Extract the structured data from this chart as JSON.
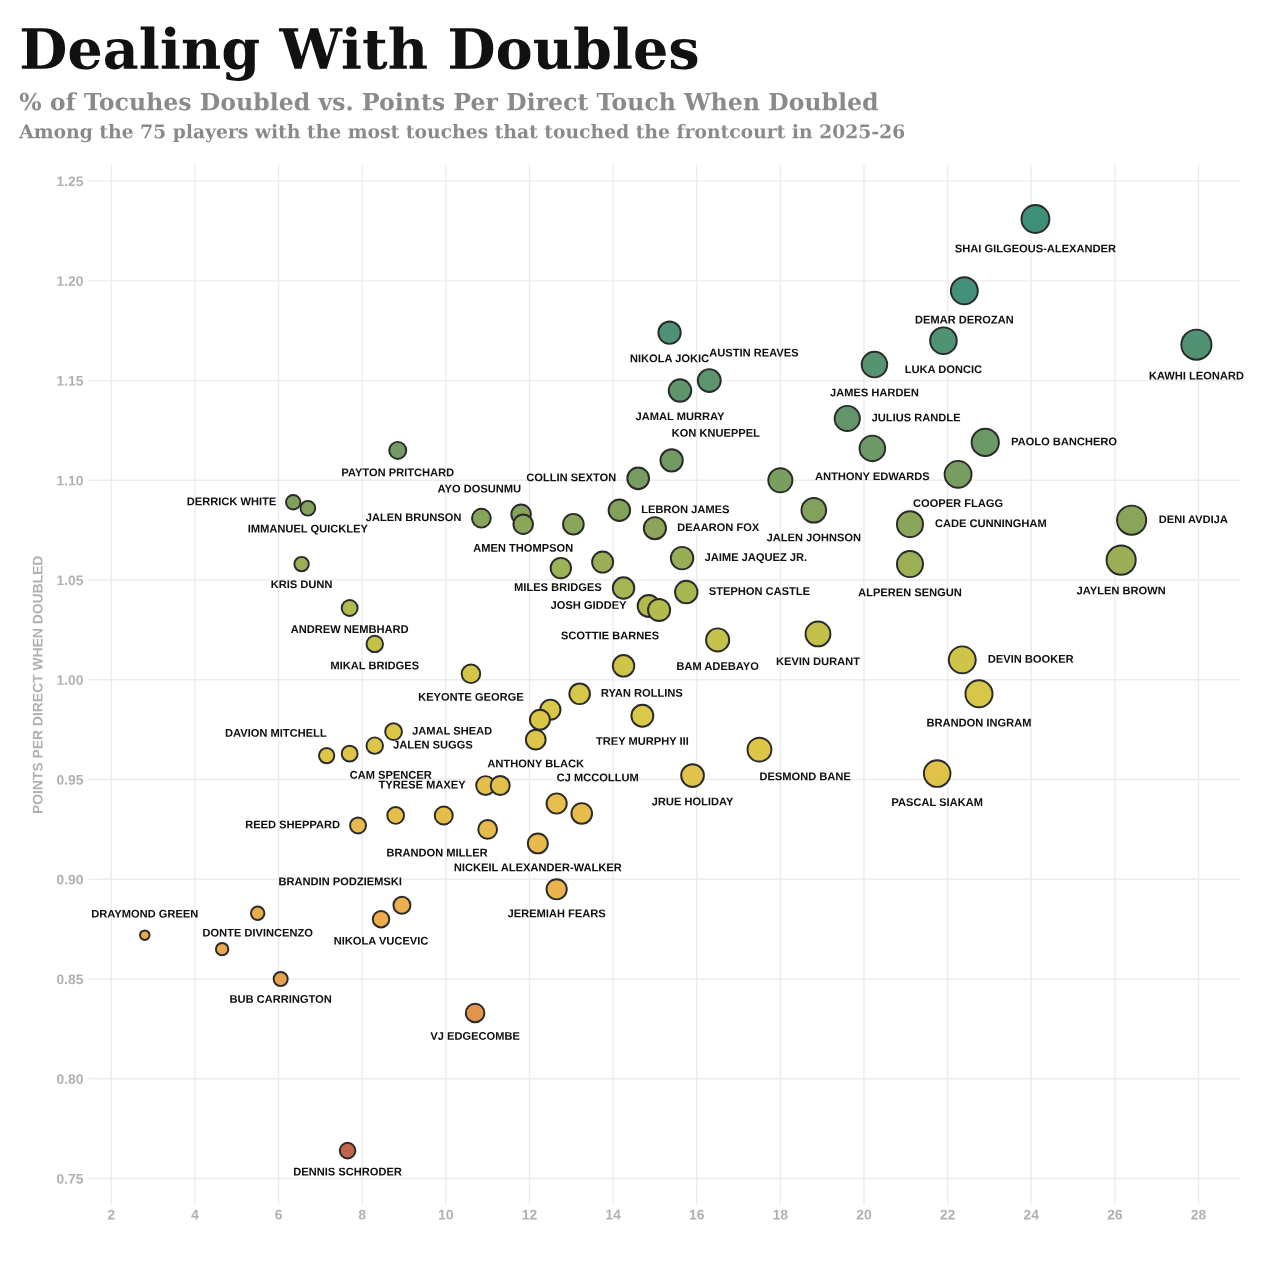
{
  "chart_data": {
    "type": "bubble",
    "title": "Dealing With Doubles",
    "subtitle": "% of Tocuhes Doubled vs. Points Per Direct Touch When Doubled",
    "ylabel": "POINTS PER DIRECT WHEN DOUBLED",
    "marker": "circle",
    "grid": true,
    "xlim": [
      1.45,
      29.0
    ],
    "ylim": [
      0.737,
      1.258
    ],
    "xticks": [
      2,
      4,
      6,
      8,
      10,
      12,
      14,
      16,
      18,
      20,
      22,
      24,
      26,
      28
    ],
    "yticks": [
      {
        "value": 0.75,
        "label": "0.75"
      },
      {
        "value": 0.8,
        "label": "0.80"
      },
      {
        "value": 0.85,
        "label": "0.85"
      },
      {
        "value": 0.9,
        "label": "0.90"
      },
      {
        "value": 0.95,
        "label": "0.95"
      },
      {
        "value": 1.0,
        "label": "1.00"
      },
      {
        "value": 1.05,
        "label": "1.05"
      },
      {
        "value": 1.1,
        "label": "1.10"
      },
      {
        "value": 1.15,
        "label": "1.15"
      },
      {
        "value": 1.2,
        "label": "1.20"
      },
      {
        "value": 1.25,
        "label": "1.25"
      }
    ],
    "x": [
      24.1,
      22.4,
      21.9,
      20.25,
      27.95,
      19.6,
      20.2,
      22.9,
      22.25,
      21.1,
      26.4,
      21.1,
      26.15,
      15.35,
      16.3,
      15.6,
      15.4,
      14.6,
      18.0,
      14.15,
      15.0,
      18.8,
      15.65,
      15.75,
      14.25,
      14.85,
      15.1,
      13.75,
      12.75,
      13.05,
      11.8,
      11.85,
      10.85,
      16.5,
      18.9,
      22.35,
      22.75,
      21.75,
      17.5,
      15.9,
      14.7,
      14.25,
      13.2,
      10.6,
      12.5,
      12.25,
      12.15,
      12.65,
      13.25,
      10.95,
      11.3,
      11.0,
      12.2,
      12.65,
      10.7,
      7.15,
      7.7,
      8.3,
      8.75,
      7.9,
      8.8,
      9.95,
      8.95,
      8.45,
      2.8,
      5.5,
      4.65,
      6.05,
      7.65,
      8.85,
      6.35,
      6.7,
      6.55,
      7.7,
      8.3
    ],
    "values": [
      1.231,
      1.195,
      1.17,
      1.158,
      1.168,
      1.131,
      1.116,
      1.119,
      1.103,
      1.078,
      1.08,
      1.058,
      1.06,
      1.174,
      1.15,
      1.145,
      1.11,
      1.101,
      1.1,
      1.085,
      1.076,
      1.085,
      1.061,
      1.044,
      1.046,
      1.037,
      1.035,
      1.059,
      1.056,
      1.078,
      1.083,
      1.078,
      1.081,
      1.02,
      1.023,
      1.01,
      0.993,
      0.953,
      0.965,
      0.952,
      0.982,
      1.007,
      0.993,
      1.003,
      0.985,
      0.98,
      0.97,
      0.938,
      0.933,
      0.947,
      0.947,
      0.925,
      0.918,
      0.895,
      0.833,
      0.962,
      0.963,
      0.967,
      0.974,
      0.927,
      0.932,
      0.932,
      0.887,
      0.88,
      0.872,
      0.883,
      0.865,
      0.85,
      0.764,
      1.115,
      1.089,
      1.086,
      1.058,
      1.036,
      1.018
    ],
    "sizes": [
      0.86,
      0.8,
      0.78,
      0.72,
      1,
      0.7,
      0.72,
      0.82,
      0.8,
      0.75,
      0.94,
      0.75,
      0.94,
      0.55,
      0.58,
      0.56,
      0.55,
      0.52,
      0.64,
      0.51,
      0.54,
      0.67,
      0.56,
      0.56,
      0.51,
      0.53,
      0.54,
      0.49,
      0.46,
      0.47,
      0.42,
      0.42,
      0.39,
      0.59,
      0.68,
      0.8,
      0.81,
      0.78,
      0.63,
      0.57,
      0.53,
      0.51,
      0.47,
      0.38,
      0.45,
      0.44,
      0.43,
      0.45,
      0.47,
      0.39,
      0.4,
      0.39,
      0.44,
      0.45,
      0.38,
      0.26,
      0.28,
      0.3,
      0.31,
      0.28,
      0.31,
      0.36,
      0.32,
      0.3,
      0.1,
      0.2,
      0.17,
      0.22,
      0.27,
      0.32,
      0.23,
      0.24,
      0.23,
      0.28,
      0.3
    ],
    "colors": [
      "#3e8f78",
      "#44907a",
      "#4f9274",
      "#579370",
      "#519272",
      "#62966a",
      "#6c9966",
      "#6a9966",
      "#779d60",
      "#8aa65a",
      "#89a55a",
      "#9bb054",
      "#99ae55",
      "#4d9275",
      "#5c956e",
      "#5f956c",
      "#719b63",
      "#779d60",
      "#789e60",
      "#82a25c",
      "#8ba65a",
      "#82a25c",
      "#97ae55",
      "#a8b650",
      "#a6b551",
      "#b0ba4e",
      "#b2bb4d",
      "#99ae55",
      "#9db155",
      "#8aa65a",
      "#85a45b",
      "#8aa65a",
      "#87a55a",
      "#c4c24a",
      "#c2c04a",
      "#cdc449",
      "#d7c748",
      "#e0c24a",
      "#ddc548",
      "#e1c24a",
      "#dac848",
      "#cfc449",
      "#d7c748",
      "#d2c549",
      "#d9c748",
      "#dbc648",
      "#ddc548",
      "#e5be4b",
      "#e6bd4b",
      "#e3c04a",
      "#e3c04a",
      "#e7bb4b",
      "#e8b94c",
      "#eab34c",
      "#e2944c",
      "#dec548",
      "#dec548",
      "#ddc548",
      "#dbc648",
      "#e7bb4b",
      "#e6bd4b",
      "#e6bd4b",
      "#ebb04d",
      "#ebad4d",
      "#e9ab4e",
      "#ebae4d",
      "#e9a84e",
      "#e8a24e",
      "#c2654c",
      "#739b63",
      "#7fa15d",
      "#82a25c",
      "#9bb054",
      "#b0ba4e",
      "#c5c24a"
    ],
    "annotations": [
      "Among the 75 players with the most touches that touched the frontcourt in 2025-26",
      {
        "text": "SHAI GILGEOUS-ALEXANDER",
        "x": 24.1,
        "y": 1.231
      },
      {
        "text": "DEMAR DEROZAN",
        "x": 22.4,
        "y": 1.195
      },
      {
        "text": "LUKA DONCIC",
        "x": 21.9,
        "y": 1.17
      },
      {
        "text": "JAMES HARDEN",
        "x": 20.25,
        "y": 1.158
      },
      {
        "text": "KAWHI LEONARD",
        "x": 27.95,
        "y": 1.168
      },
      {
        "text": "JULIUS RANDLE",
        "x": 19.6,
        "y": 1.131
      },
      {
        "text": "ANTHONY EDWARDS",
        "x": 20.2,
        "y": 1.116
      },
      {
        "text": "PAOLO BANCHERO",
        "x": 22.9,
        "y": 1.119
      },
      {
        "text": "COOPER FLAGG",
        "x": 22.25,
        "y": 1.103
      },
      {
        "text": "CADE CUNNINGHAM",
        "x": 21.1,
        "y": 1.078
      },
      {
        "text": "DENI AVDIJA",
        "x": 26.4,
        "y": 1.08
      },
      {
        "text": "ALPEREN SENGUN",
        "x": 21.1,
        "y": 1.058
      },
      {
        "text": "JAYLEN BROWN",
        "x": 26.15,
        "y": 1.06
      },
      {
        "text": "NIKOLA JOKIC",
        "x": 15.35,
        "y": 1.174
      },
      {
        "text": "AUSTIN REAVES",
        "x": 16.3,
        "y": 1.15
      },
      {
        "text": "JAMAL MURRAY",
        "x": 15.6,
        "y": 1.145
      },
      {
        "text": "KON KNUEPPEL",
        "x": 15.4,
        "y": 1.11
      },
      {
        "text": "COLLIN SEXTON",
        "x": 14.6,
        "y": 1.101
      },
      {
        "text": "LEBRON JAMES",
        "x": 14.15,
        "y": 1.085
      },
      {
        "text": "DEAARON FOX",
        "x": 15.0,
        "y": 1.076
      },
      {
        "text": "JALEN JOHNSON",
        "x": 18.8,
        "y": 1.085
      },
      {
        "text": "JAIME JAQUEZ JR.",
        "x": 15.65,
        "y": 1.061
      },
      {
        "text": "STEPHON CASTLE",
        "x": 15.75,
        "y": 1.044
      },
      {
        "text": "MILES BRIDGES",
        "x": 14.25,
        "y": 1.046
      },
      {
        "text": "JOSH GIDDEY",
        "x": 14.85,
        "y": 1.037
      },
      {
        "text": "SCOTTIE BARNES",
        "x": 15.1,
        "y": 1.035
      },
      {
        "text": "AYO DOSUNMU",
        "x": 11.8,
        "y": 1.083
      },
      {
        "text": "AMEN THOMPSON",
        "x": 11.85,
        "y": 1.078
      },
      {
        "text": "JALEN BRUNSON",
        "x": 10.85,
        "y": 1.081
      },
      {
        "text": "BAM ADEBAYO",
        "x": 16.5,
        "y": 1.02
      },
      {
        "text": "KEVIN DURANT",
        "x": 18.9,
        "y": 1.023
      },
      {
        "text": "DEVIN BOOKER",
        "x": 22.35,
        "y": 1.01
      },
      {
        "text": "BRANDON INGRAM",
        "x": 22.75,
        "y": 0.993
      },
      {
        "text": "PASCAL SIAKAM",
        "x": 21.75,
        "y": 0.953
      },
      {
        "text": "DESMOND BANE",
        "x": 17.5,
        "y": 0.965
      },
      {
        "text": "JRUE HOLIDAY",
        "x": 15.9,
        "y": 0.952
      },
      {
        "text": "TREY MURPHY III",
        "x": 14.7,
        "y": 0.982
      },
      {
        "text": "RYAN ROLLINS",
        "x": 13.2,
        "y": 0.993
      },
      {
        "text": "KEYONTE GEORGE",
        "x": 10.6,
        "y": 1.003
      },
      {
        "text": "ANTHONY BLACK",
        "x": 12.15,
        "y": 0.97
      },
      {
        "text": "CJ MCCOLLUM",
        "x": 12.65,
        "y": 0.938
      },
      {
        "text": "TYRESE MAXEY",
        "x": 10.95,
        "y": 0.947
      },
      {
        "text": "BRANDON MILLER",
        "x": 11.0,
        "y": 0.925
      },
      {
        "text": "NICKEIL ALEXANDER-WALKER",
        "x": 12.2,
        "y": 0.918
      },
      {
        "text": "JEREMIAH FEARS",
        "x": 12.65,
        "y": 0.895
      },
      {
        "text": "VJ EDGECOMBE",
        "x": 10.7,
        "y": 0.833
      },
      {
        "text": "DAVION MITCHELL",
        "x": 7.15,
        "y": 0.962
      },
      {
        "text": "CAM SPENCER",
        "x": 7.7,
        "y": 0.963
      },
      {
        "text": "JALEN SUGGS",
        "x": 8.3,
        "y": 0.967
      },
      {
        "text": "JAMAL SHEAD",
        "x": 8.75,
        "y": 0.974
      },
      {
        "text": "REED SHEPPARD",
        "x": 7.9,
        "y": 0.927
      },
      {
        "text": "BRANDIN PODZIEMSKI",
        "x": 8.95,
        "y": 0.887
      },
      {
        "text": "NIKOLA VUCEVIC",
        "x": 8.45,
        "y": 0.88
      },
      {
        "text": "DRAYMOND GREEN",
        "x": 2.8,
        "y": 0.872
      },
      {
        "text": "DONTE DIVINCENZO",
        "x": 5.5,
        "y": 0.883
      },
      {
        "text": "BUB CARRINGTON",
        "x": 6.05,
        "y": 0.85
      },
      {
        "text": "DENNIS SCHRODER",
        "x": 7.65,
        "y": 0.764
      },
      {
        "text": "PAYTON PRITCHARD",
        "x": 8.85,
        "y": 1.115
      },
      {
        "text": "DERRICK WHITE",
        "x": 6.35,
        "y": 1.089
      },
      {
        "text": "IMMANUEL QUICKLEY",
        "x": 6.7,
        "y": 1.086
      },
      {
        "text": "KRIS DUNN",
        "x": 6.55,
        "y": 1.058
      },
      {
        "text": "ANDREW NEMBHARD",
        "x": 7.7,
        "y": 1.036
      },
      {
        "text": "MIKAL BRIDGES",
        "x": 8.3,
        "y": 1.018
      }
    ]
  }
}
